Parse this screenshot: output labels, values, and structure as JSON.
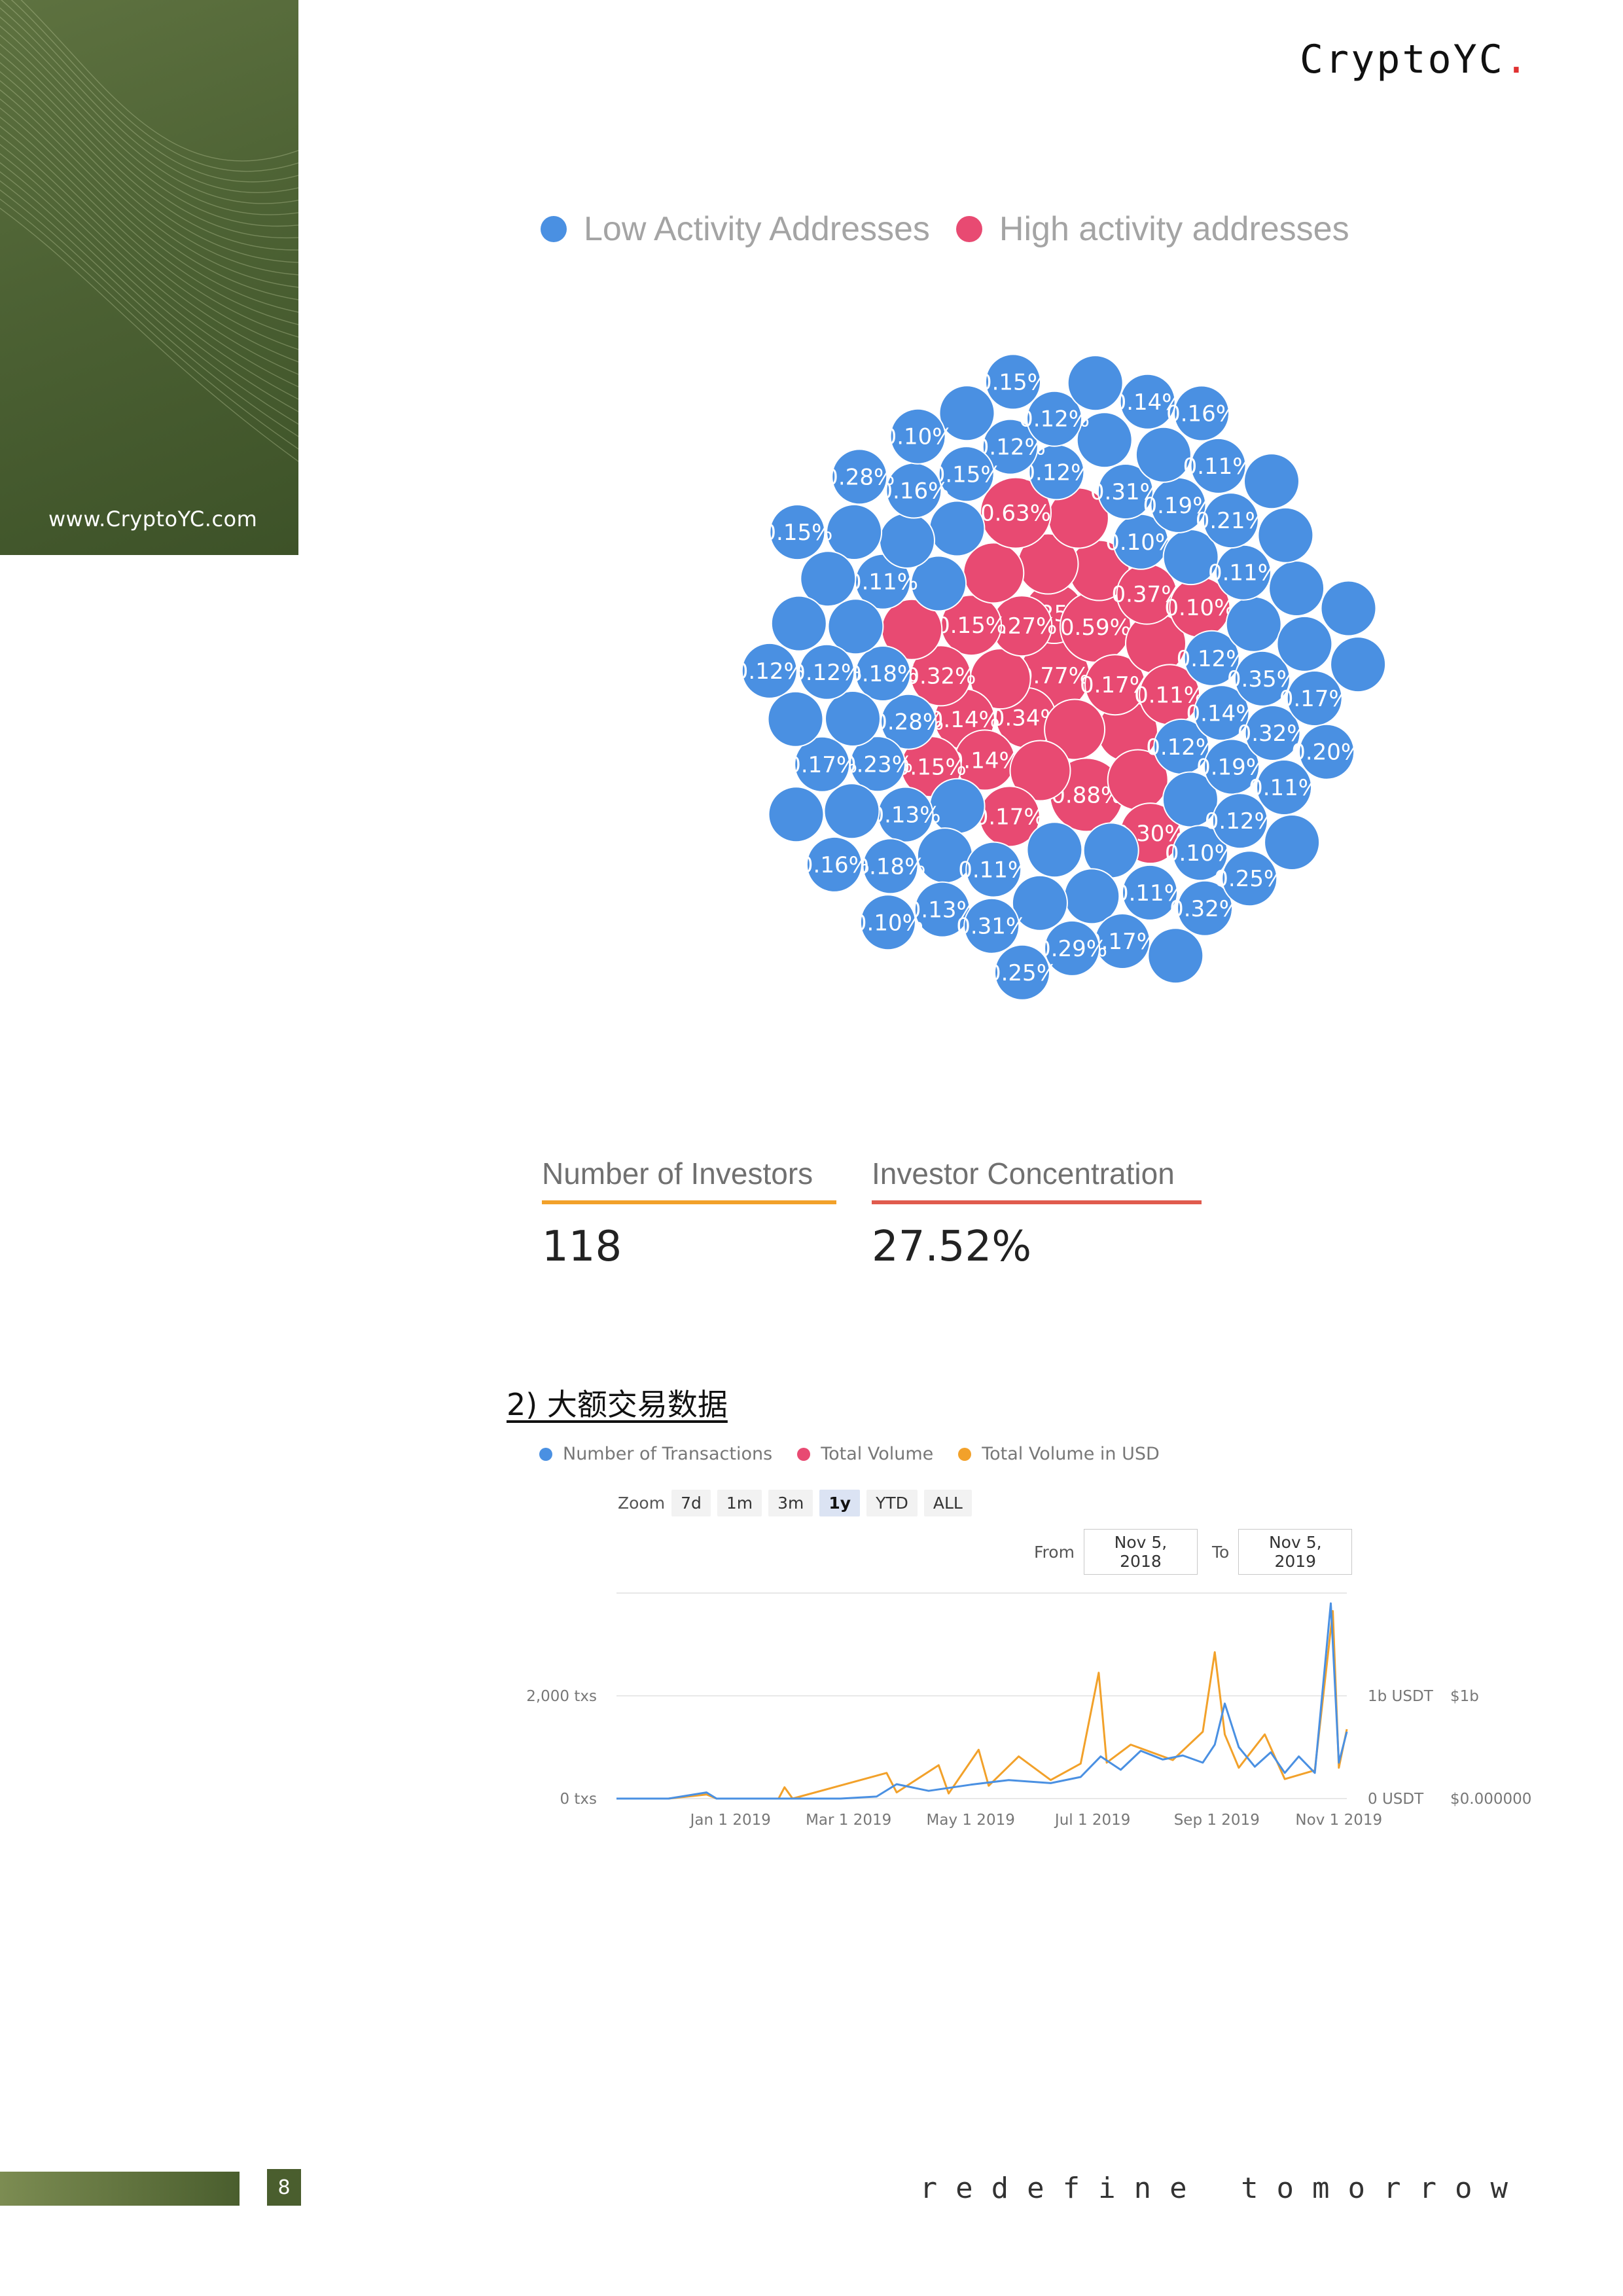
{
  "brand": {
    "name": "CryptoYC",
    "dot": "."
  },
  "side_panel": {
    "url": "www.CryptoYC.com"
  },
  "footer": {
    "page_number": "8",
    "tagline": "redefine tomorrow"
  },
  "colors": {
    "low": "#4a90e2",
    "high": "#e84a72",
    "orange": "#f2a12a",
    "brand_green": "#4d6234"
  },
  "bubble_chart": {
    "legend": [
      "Low Activity Addresses",
      "High activity addresses"
    ],
    "bubbles": [
      {
        "label": "0.77%",
        "group": "high"
      },
      {
        "label": "0.12%",
        "group": "low"
      },
      {
        "label": "0.28%",
        "group": "low"
      },
      {
        "label": "0.10%",
        "group": "low"
      },
      {
        "label": "",
        "group": "low"
      },
      {
        "label": "",
        "group": "low"
      },
      {
        "label": "0.12%",
        "group": "low"
      },
      {
        "label": "",
        "group": "low"
      },
      {
        "label": "0.12%",
        "group": "low"
      },
      {
        "label": "",
        "group": "low"
      },
      {
        "label": "0.18%",
        "group": "low"
      },
      {
        "label": "",
        "group": "low"
      },
      {
        "label": "",
        "group": "low"
      },
      {
        "label": "",
        "group": "low"
      },
      {
        "label": "0.14%",
        "group": "low"
      },
      {
        "label": "0.23%",
        "group": "low"
      },
      {
        "label": "0.31%",
        "group": "low"
      },
      {
        "label": "0.11%",
        "group": "low"
      },
      {
        "label": "0.11%",
        "group": "low"
      },
      {
        "label": "",
        "group": "low"
      },
      {
        "label": "",
        "group": "low"
      },
      {
        "label": "0.34%",
        "group": "high"
      },
      {
        "label": "0.12%",
        "group": "low"
      },
      {
        "label": "0.19%",
        "group": "low"
      },
      {
        "label": "",
        "group": "low"
      },
      {
        "label": "0.19%",
        "group": "low"
      },
      {
        "label": "0.25%",
        "group": "high"
      },
      {
        "label": "",
        "group": "low"
      },
      {
        "label": "",
        "group": "high"
      },
      {
        "label": "",
        "group": "high"
      },
      {
        "label": "",
        "group": "low"
      },
      {
        "label": "0.35%",
        "group": "low"
      },
      {
        "label": "0.13%",
        "group": "low"
      },
      {
        "label": "",
        "group": "low"
      },
      {
        "label": "0.10%",
        "group": "low"
      },
      {
        "label": "0.59%",
        "group": "high"
      },
      {
        "label": "",
        "group": "high"
      },
      {
        "label": "0.27%",
        "group": "high"
      },
      {
        "label": "",
        "group": "low"
      },
      {
        "label": "0.17%",
        "group": "high"
      },
      {
        "label": "0.11%",
        "group": "low"
      },
      {
        "label": "0.11%",
        "group": "low"
      },
      {
        "label": "0.15%",
        "group": "low"
      },
      {
        "label": "0.32%",
        "group": "low"
      },
      {
        "label": "0.17%",
        "group": "low"
      },
      {
        "label": "",
        "group": "low"
      },
      {
        "label": "0.17%",
        "group": "low"
      },
      {
        "label": "0.14%",
        "group": "high"
      },
      {
        "label": "",
        "group": "high"
      },
      {
        "label": "0.88%",
        "group": "high"
      },
      {
        "label": "0.15%",
        "group": "high"
      },
      {
        "label": "",
        "group": "low"
      },
      {
        "label": "",
        "group": "low"
      },
      {
        "label": "0.18%",
        "group": "low"
      },
      {
        "label": "",
        "group": "high"
      },
      {
        "label": "0.12%",
        "group": "low"
      },
      {
        "label": "0.12%",
        "group": "low"
      },
      {
        "label": "0.12%",
        "group": "low"
      },
      {
        "label": "0.14%",
        "group": "high"
      },
      {
        "label": "",
        "group": "high"
      },
      {
        "label": "",
        "group": "high"
      },
      {
        "label": "0.32%",
        "group": "high"
      },
      {
        "label": "0.37%",
        "group": "high"
      },
      {
        "label": "0.21%",
        "group": "low"
      },
      {
        "label": "",
        "group": "low"
      },
      {
        "label": "0.16%",
        "group": "low"
      },
      {
        "label": "0.17%",
        "group": "low"
      },
      {
        "label": "",
        "group": "low"
      },
      {
        "label": "",
        "group": "high"
      },
      {
        "label": "",
        "group": "high"
      },
      {
        "label": "0.14%",
        "group": "low"
      },
      {
        "label": "0.11%",
        "group": "high"
      },
      {
        "label": "0.15%",
        "group": "high"
      },
      {
        "label": "",
        "group": "high"
      },
      {
        "label": "0.32%",
        "group": "low"
      },
      {
        "label": "",
        "group": "low"
      },
      {
        "label": "0.30%",
        "group": "high"
      },
      {
        "label": "",
        "group": "high"
      },
      {
        "label": "0.10%",
        "group": "high"
      },
      {
        "label": "",
        "group": "low"
      },
      {
        "label": "0.13%",
        "group": "low"
      },
      {
        "label": "0.17%",
        "group": "high"
      },
      {
        "label": "",
        "group": "low"
      },
      {
        "label": "0.11%",
        "group": "low"
      },
      {
        "label": "",
        "group": "low"
      },
      {
        "label": "0.11%",
        "group": "low"
      },
      {
        "label": "0.29%",
        "group": "low"
      },
      {
        "label": "0.28%",
        "group": "low"
      },
      {
        "label": "",
        "group": "low"
      },
      {
        "label": "0.16%",
        "group": "low"
      },
      {
        "label": "0.63%",
        "group": "high"
      },
      {
        "label": "",
        "group": "low"
      },
      {
        "label": "0.25%",
        "group": "low"
      },
      {
        "label": "",
        "group": "low"
      },
      {
        "label": "",
        "group": "low"
      },
      {
        "label": "0.31%",
        "group": "low"
      },
      {
        "label": "0.10%",
        "group": "low"
      },
      {
        "label": "0.20%",
        "group": "low"
      },
      {
        "label": "",
        "group": "low"
      },
      {
        "label": "0.16%",
        "group": "low"
      },
      {
        "label": "",
        "group": "low"
      },
      {
        "label": "0.15%",
        "group": "low"
      },
      {
        "label": "",
        "group": "low"
      },
      {
        "label": "0.10%",
        "group": "low"
      },
      {
        "label": "0.15%",
        "group": "low"
      },
      {
        "label": "",
        "group": "low"
      },
      {
        "label": "0.12%",
        "group": "low"
      },
      {
        "label": "",
        "group": "low"
      },
      {
        "label": "0.25%",
        "group": "low"
      }
    ]
  },
  "stats": [
    {
      "label": "Number of Investors",
      "value": "118",
      "color": "#f2a12a"
    },
    {
      "label": "Investor Concentration",
      "value": "27.52%",
      "color": "#e05b4e"
    }
  ],
  "section": {
    "title": "2) 大额交易数据"
  },
  "tx_chart": {
    "legend": [
      {
        "name": "Number of Transactions",
        "color": "#4a90e2"
      },
      {
        "name": "Total Volume",
        "color": "#e84a72"
      },
      {
        "name": "Total Volume in USD",
        "color": "#f2a12a"
      }
    ],
    "zoom": {
      "label": "Zoom",
      "options": [
        "7d",
        "1m",
        "3m",
        "1y",
        "YTD",
        "ALL"
      ],
      "active": "1y"
    },
    "range": {
      "from_label": "From",
      "from": "Nov 5, 2018",
      "to_label": "To",
      "to": "Nov 5, 2019"
    }
  },
  "chart_data": {
    "type": "line",
    "x_axis": {
      "ticks": [
        "Jan 1 2019",
        "Mar 1 2019",
        "May 1 2019",
        "Jul 1 2019",
        "Sep 1 2019",
        "Nov 1 2019"
      ],
      "range": [
        "Nov 5, 2018",
        "Nov 5, 2019"
      ]
    },
    "y_left": {
      "ticks": [
        "0 txs",
        "2,000 txs"
      ]
    },
    "y_right_1": {
      "ticks": [
        "0 USDT",
        "1b USDT"
      ]
    },
    "y_right_2": {
      "ticks": [
        "$0.000000",
        "$1b"
      ]
    },
    "series": [
      {
        "name": "Number of Transactions",
        "color": "#4a90e2",
        "points": [
          [
            "2018-11-05",
            0
          ],
          [
            "2018-12-01",
            0
          ],
          [
            "2018-12-20",
            120
          ],
          [
            "2018-12-25",
            0
          ],
          [
            "2019-02-25",
            0
          ],
          [
            "2019-03-15",
            40
          ],
          [
            "2019-03-25",
            280
          ],
          [
            "2019-04-10",
            150
          ],
          [
            "2019-05-01",
            270
          ],
          [
            "2019-05-20",
            360
          ],
          [
            "2019-06-10",
            300
          ],
          [
            "2019-06-25",
            420
          ],
          [
            "2019-07-05",
            820
          ],
          [
            "2019-07-15",
            560
          ],
          [
            "2019-07-25",
            930
          ],
          [
            "2019-08-05",
            760
          ],
          [
            "2019-08-15",
            840
          ],
          [
            "2019-08-25",
            700
          ],
          [
            "2019-08-31",
            1050
          ],
          [
            "2019-09-05",
            1850
          ],
          [
            "2019-09-12",
            1000
          ],
          [
            "2019-09-20",
            620
          ],
          [
            "2019-09-28",
            900
          ],
          [
            "2019-10-05",
            500
          ],
          [
            "2019-10-12",
            820
          ],
          [
            "2019-10-20",
            500
          ],
          [
            "2019-10-28",
            3800
          ],
          [
            "2019-11-01",
            700
          ],
          [
            "2019-11-05",
            1300
          ]
        ]
      },
      {
        "name": "Total Volume in USD",
        "color": "#f2a12a",
        "points": [
          [
            "2018-11-05",
            0
          ],
          [
            "2018-12-01",
            0
          ],
          [
            "2018-12-20",
            80
          ],
          [
            "2018-12-25",
            0
          ],
          [
            "2019-01-25",
            0
          ],
          [
            "2019-01-28",
            220
          ],
          [
            "2019-02-01",
            0
          ],
          [
            "2019-03-20",
            500
          ],
          [
            "2019-03-25",
            120
          ],
          [
            "2019-04-15",
            650
          ],
          [
            "2019-04-20",
            100
          ],
          [
            "2019-05-05",
            950
          ],
          [
            "2019-05-10",
            250
          ],
          [
            "2019-05-25",
            820
          ],
          [
            "2019-06-10",
            360
          ],
          [
            "2019-06-25",
            680
          ],
          [
            "2019-07-04",
            2450
          ],
          [
            "2019-07-08",
            700
          ],
          [
            "2019-07-20",
            1050
          ],
          [
            "2019-08-10",
            750
          ],
          [
            "2019-08-25",
            1300
          ],
          [
            "2019-08-31",
            2850
          ],
          [
            "2019-09-05",
            1250
          ],
          [
            "2019-09-12",
            600
          ],
          [
            "2019-09-25",
            1250
          ],
          [
            "2019-10-05",
            380
          ],
          [
            "2019-10-20",
            550
          ],
          [
            "2019-10-29",
            3650
          ],
          [
            "2019-11-01",
            600
          ],
          [
            "2019-11-05",
            1350
          ]
        ]
      }
    ]
  }
}
